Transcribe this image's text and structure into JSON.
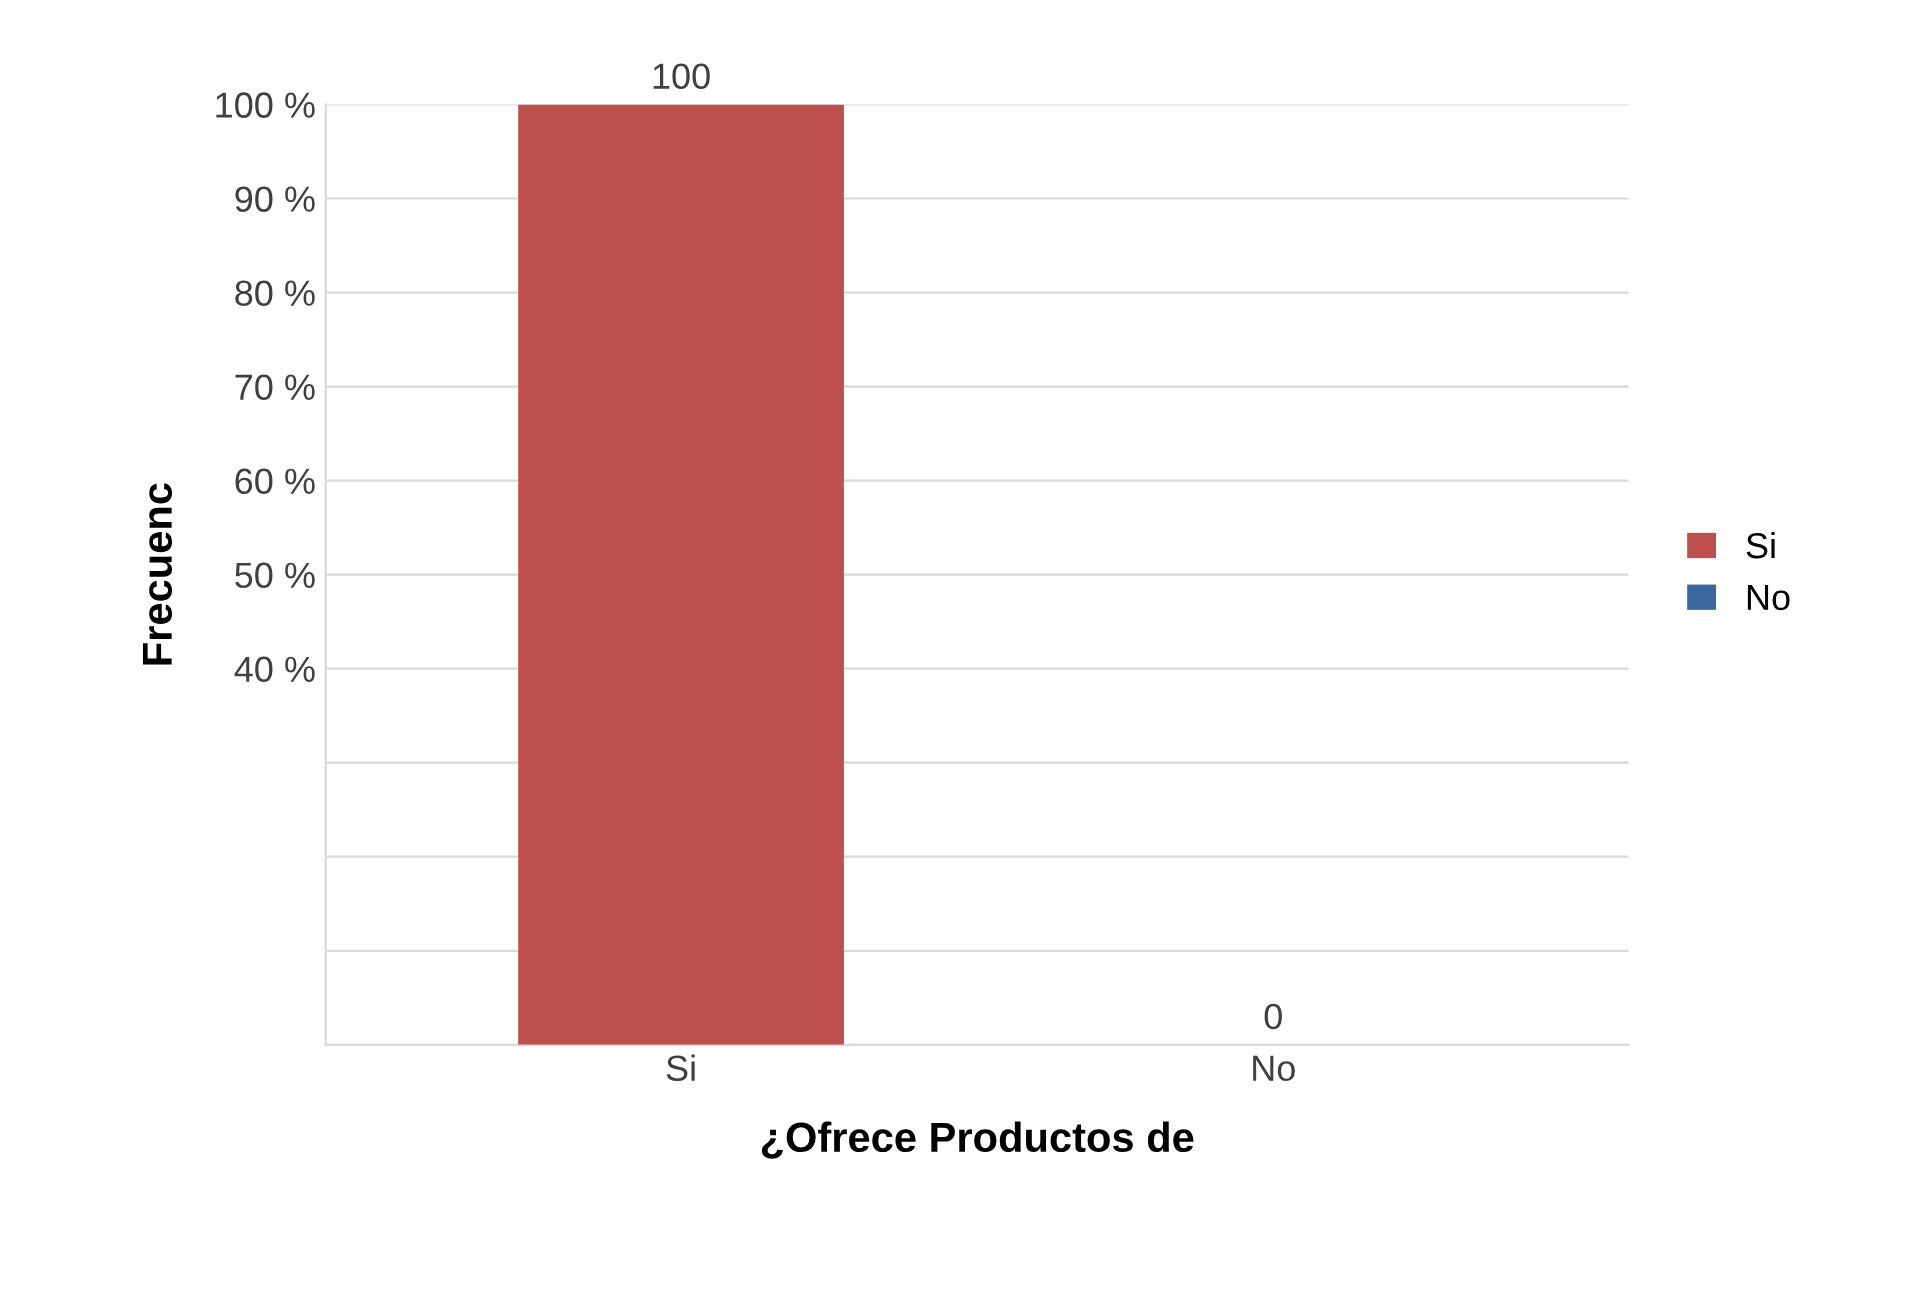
{
  "chart_data": {
    "type": "bar",
    "categories": [
      "Si",
      "No"
    ],
    "series": [
      {
        "name": "Si",
        "color": "#c0504d",
        "values": [
          100,
          null
        ]
      },
      {
        "name": "No",
        "color": "#3c68a0",
        "values": [
          null,
          0
        ]
      }
    ],
    "xlabel": "¿Ofrece Productos de",
    "ylabel": "Frecuenc",
    "ylim": [
      0,
      100
    ],
    "yticks": [
      {
        "value": 0,
        "label": null
      },
      {
        "value": 10,
        "label": null
      },
      {
        "value": 20,
        "label": null
      },
      {
        "value": 30,
        "label": null
      },
      {
        "value": 40,
        "label": "40 %"
      },
      {
        "value": 50,
        "label": "50 %"
      },
      {
        "value": 60,
        "label": "60 %"
      },
      {
        "value": 70,
        "label": "70 %"
      },
      {
        "value": 80,
        "label": "80 %"
      },
      {
        "value": 90,
        "label": "90 %"
      },
      {
        "value": 100,
        "label": "100 %"
      }
    ],
    "data_labels": true,
    "grid": "y",
    "legend": "right"
  }
}
